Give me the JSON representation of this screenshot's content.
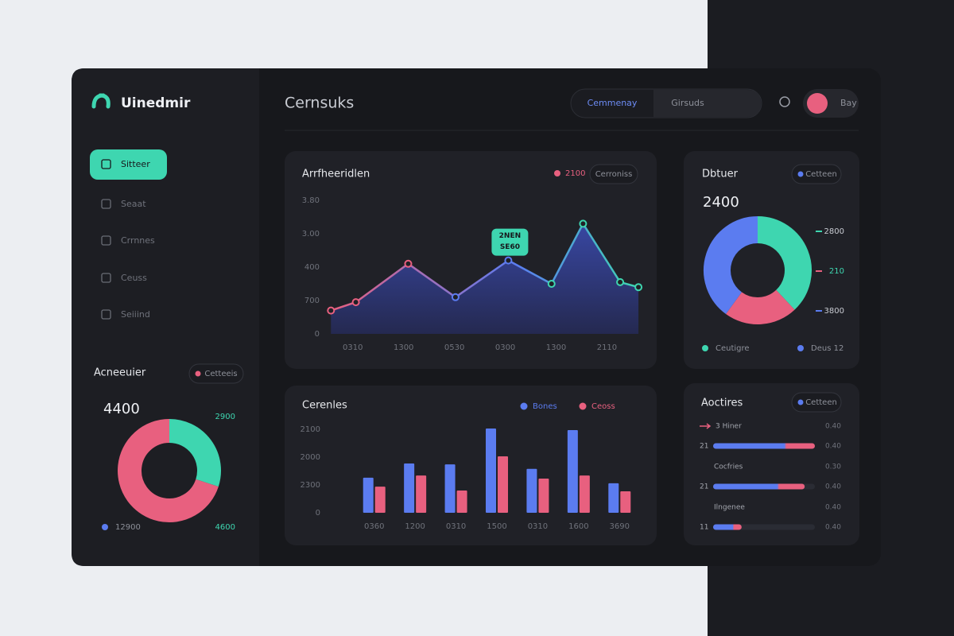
{
  "brand": "Uinedmir",
  "header": {
    "title": "Cernsuks",
    "tabs": [
      "Cemmenay",
      "Girsuds"
    ],
    "user": "Bay"
  },
  "nav": [
    "Sitteer",
    "Seaat",
    "Crrnnes",
    "Ceuss",
    "Seiiind"
  ],
  "chart_data": [
    {
      "type": "donut",
      "title": "Acneeuier",
      "button": "Cetteeis",
      "total": 4400,
      "values": [
        30,
        70
      ],
      "colors": [
        "#3ed6b0",
        "#e8607f"
      ],
      "annotations": [
        "2900",
        "4600"
      ],
      "legend": [
        {
          "label": "12900",
          "color": "#5b7cf0"
        }
      ]
    },
    {
      "type": "area",
      "title": "Arrfheeridlen",
      "legend": [
        {
          "label": "2100",
          "color": "#e8607f"
        }
      ],
      "button": "Cerroniss",
      "x": [
        -0.43,
        0.06,
        1.09,
        2.02,
        3.06,
        3.91,
        4.53,
        5.26,
        5.62
      ],
      "values": [
        0.7,
        0.95,
        2.1,
        1.1,
        2.2,
        1.5,
        3.3,
        1.55,
        1.4
      ],
      "xlim": [
        -0.45,
        5.65
      ],
      "xticks": [
        {
          "value": 0,
          "label": "0310"
        },
        {
          "value": 1,
          "label": "1300"
        },
        {
          "value": 2,
          "label": "0530"
        },
        {
          "value": 3,
          "label": "0300"
        },
        {
          "value": 4,
          "label": "1300"
        },
        {
          "value": 5,
          "label": "2110"
        }
      ],
      "ylim": [
        0,
        4
      ],
      "yticks": [
        0,
        {
          "value": 1,
          "label": "700"
        },
        {
          "value": 2,
          "label": "400"
        },
        {
          "value": 3,
          "label": "3.00"
        },
        {
          "value": 4,
          "label": "3.80"
        }
      ],
      "line_colors": [
        "#e8607f",
        "#5b7cf0",
        "#3ed6b0"
      ],
      "fill_color": "#3b4bb0",
      "annotation": [
        "2NEN",
        "SE60"
      ]
    },
    {
      "type": "donut",
      "title": "Dbtuer",
      "button": "Cetteen",
      "total": 2400,
      "values": [
        38,
        22,
        40
      ],
      "colors": [
        "#3ed6b0",
        "#e8607f",
        "#5b7cf0"
      ],
      "annotations": [
        "2800",
        "210",
        "3800"
      ],
      "legend": [
        {
          "label": "Ceutigre",
          "color": "#3ed6b0"
        },
        {
          "label": "Deus 12",
          "color": "#5b7cf0"
        }
      ]
    },
    {
      "type": "bar",
      "title": "Cerenles",
      "categories": [
        "0360",
        "1200",
        "0310",
        "1500",
        "0310",
        "1600",
        "3690"
      ],
      "series": [
        {
          "name": "Bones",
          "color": "#5b7cf0",
          "values": [
            1.26,
            1.77,
            1.74,
            3.03,
            1.58,
            2.97,
            1.06
          ]
        },
        {
          "name": "Ceoss",
          "color": "#e8607f",
          "values": [
            0.94,
            1.34,
            0.8,
            2.03,
            1.23,
            1.34,
            0.77
          ]
        }
      ],
      "ylim": [
        0,
        3.1
      ],
      "yticks": [
        0,
        {
          "value": 1,
          "label": "2300"
        },
        {
          "value": 2,
          "label": "2000"
        },
        {
          "value": 3,
          "label": "2100"
        }
      ]
    },
    {
      "type": "progress",
      "title": "Aoctires",
      "button": "Cetteen",
      "xlim": [
        0,
        100
      ],
      "colors": [
        "#5b7cf0",
        "#e8607f"
      ],
      "rows": [
        {
          "label": "3 Hiner",
          "note": "0.40"
        },
        {
          "label": "21",
          "note": "0.40",
          "value": 100
        },
        {
          "label": "Cocfries",
          "note": "0.30"
        },
        {
          "label": "21",
          "note": "0.40",
          "value": 90
        },
        {
          "label": "Ilngenee",
          "note": "0.40"
        },
        {
          "label": "11",
          "note": "0.40",
          "value": 28
        }
      ]
    }
  ]
}
